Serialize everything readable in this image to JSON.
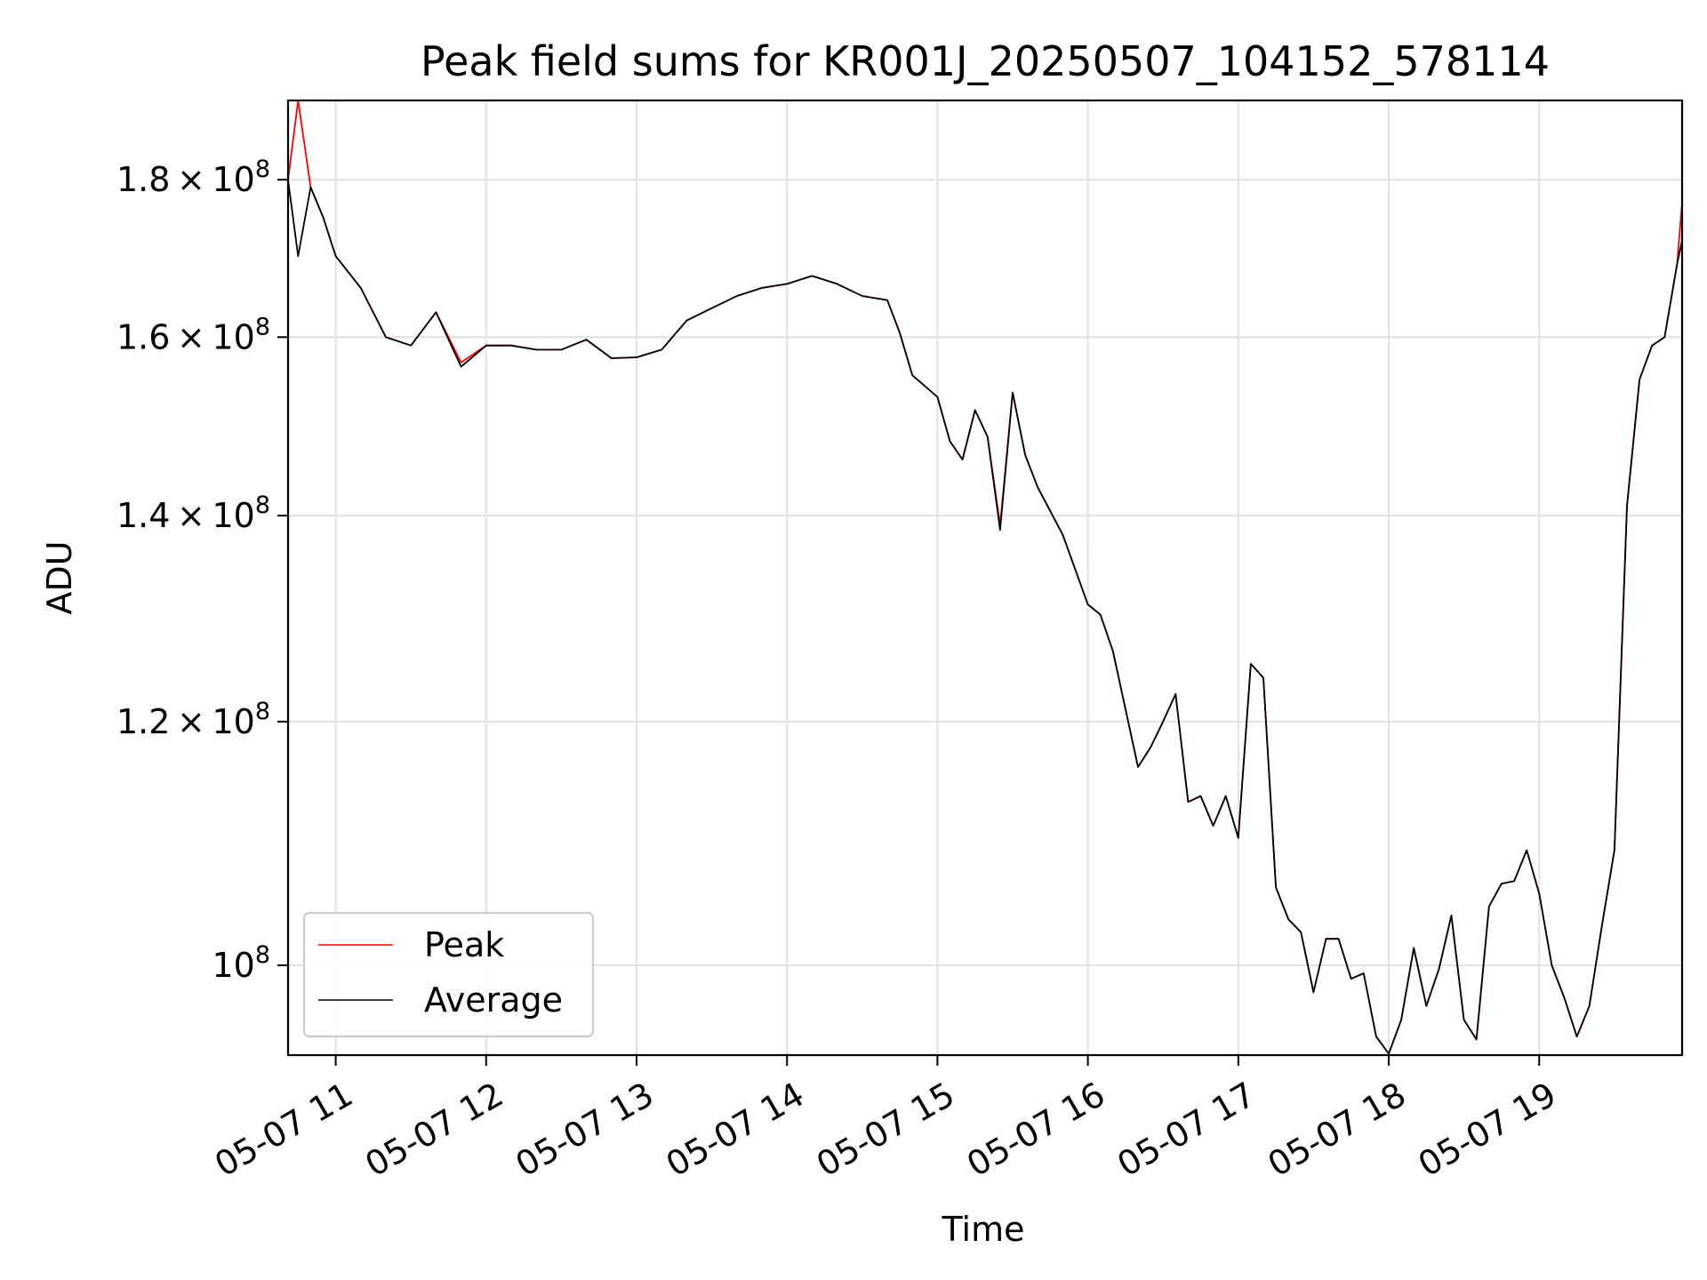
{
  "chart_data": {
    "type": "line",
    "title": "Peak field sums for KR001J_20250507_104152_578114",
    "xlabel": "Time",
    "ylabel": "ADU",
    "y_scale": "log",
    "xlim": [
      "2025-05-07 10:41",
      "2025-05-07 19:57"
    ],
    "ylim": [
      93500000,
      191000000
    ],
    "grid": true,
    "legend_position": "lower-left",
    "x_ticks": [
      "2025-05-07 11:00",
      "2025-05-07 12:00",
      "2025-05-07 13:00",
      "2025-05-07 14:00",
      "2025-05-07 15:00",
      "2025-05-07 16:00",
      "2025-05-07 17:00",
      "2025-05-07 18:00",
      "2025-05-07 19:00"
    ],
    "x_tick_labels": [
      "05-07 11",
      "05-07 12",
      "05-07 13",
      "05-07 14",
      "05-07 15",
      "05-07 16",
      "05-07 17",
      "05-07 18",
      "05-07 19"
    ],
    "y_ticks": [
      100000000,
      120000000,
      140000000,
      160000000,
      180000000
    ],
    "y_tick_labels": [
      {
        "mantissa": "",
        "exponent": "8"
      },
      {
        "mantissa": "1.2",
        "exponent": "8"
      },
      {
        "mantissa": "1.4",
        "exponent": "8"
      },
      {
        "mantissa": "1.6",
        "exponent": "8"
      },
      {
        "mantissa": "1.8",
        "exponent": "8"
      }
    ],
    "x": [
      "2025-05-07 10:41",
      "2025-05-07 10:45",
      "2025-05-07 10:50",
      "2025-05-07 10:55",
      "2025-05-07 11:00",
      "2025-05-07 11:10",
      "2025-05-07 11:20",
      "2025-05-07 11:30",
      "2025-05-07 11:40",
      "2025-05-07 11:50",
      "2025-05-07 12:00",
      "2025-05-07 12:10",
      "2025-05-07 12:20",
      "2025-05-07 12:30",
      "2025-05-07 12:40",
      "2025-05-07 12:50",
      "2025-05-07 13:00",
      "2025-05-07 13:10",
      "2025-05-07 13:20",
      "2025-05-07 13:30",
      "2025-05-07 13:40",
      "2025-05-07 13:50",
      "2025-05-07 14:00",
      "2025-05-07 14:10",
      "2025-05-07 14:20",
      "2025-05-07 14:30",
      "2025-05-07 14:40",
      "2025-05-07 14:45",
      "2025-05-07 14:50",
      "2025-05-07 15:00",
      "2025-05-07 15:05",
      "2025-05-07 15:10",
      "2025-05-07 15:15",
      "2025-05-07 15:20",
      "2025-05-07 15:25",
      "2025-05-07 15:30",
      "2025-05-07 15:35",
      "2025-05-07 15:40",
      "2025-05-07 15:50",
      "2025-05-07 16:00",
      "2025-05-07 16:05",
      "2025-05-07 16:10",
      "2025-05-07 16:20",
      "2025-05-07 16:25",
      "2025-05-07 16:30",
      "2025-05-07 16:35",
      "2025-05-07 16:40",
      "2025-05-07 16:45",
      "2025-05-07 16:50",
      "2025-05-07 16:55",
      "2025-05-07 17:00",
      "2025-05-07 17:05",
      "2025-05-07 17:10",
      "2025-05-07 17:15",
      "2025-05-07 17:20",
      "2025-05-07 17:25",
      "2025-05-07 17:30",
      "2025-05-07 17:35",
      "2025-05-07 17:40",
      "2025-05-07 17:45",
      "2025-05-07 17:50",
      "2025-05-07 17:55",
      "2025-05-07 18:00",
      "2025-05-07 18:05",
      "2025-05-07 18:10",
      "2025-05-07 18:15",
      "2025-05-07 18:20",
      "2025-05-07 18:25",
      "2025-05-07 18:30",
      "2025-05-07 18:35",
      "2025-05-07 18:40",
      "2025-05-07 18:45",
      "2025-05-07 18:50",
      "2025-05-07 18:55",
      "2025-05-07 19:00",
      "2025-05-07 19:05",
      "2025-05-07 19:10",
      "2025-05-07 19:15",
      "2025-05-07 19:20",
      "2025-05-07 19:25",
      "2025-05-07 19:30",
      "2025-05-07 19:35",
      "2025-05-07 19:40",
      "2025-05-07 19:45",
      "2025-05-07 19:50",
      "2025-05-07 19:55",
      "2025-05-07 19:57"
    ],
    "series": [
      {
        "name": "Peak",
        "color": "#ff0000",
        "values": [
          180000000,
          191000000,
          179000000,
          175000000,
          170000000,
          166000000,
          160000000,
          159000000,
          163000000,
          157000000,
          159000000,
          159000000,
          158500000,
          158500000,
          159700000,
          157500000,
          157600000,
          158500000,
          162000000,
          163500000,
          165000000,
          166000000,
          166500000,
          167500000,
          166500000,
          165000000,
          164500000,
          160500000,
          155500000,
          153000000,
          148000000,
          146000000,
          151500000,
          148500000,
          139000000,
          153500000,
          146500000,
          143000000,
          138000000,
          131000000,
          130000000,
          126500000,
          116000000,
          117700000,
          120000000,
          122500000,
          113000000,
          113500000,
          111000000,
          113500000,
          110000000,
          125300000,
          124000000,
          106000000,
          103500000,
          102500000,
          98000000,
          102000000,
          102000000,
          99000000,
          99400000,
          94800000,
          93600000,
          96000000,
          101300000,
          97000000,
          99700000,
          103800000,
          96000000,
          94600000,
          104500000,
          106300000,
          106500000,
          109000000,
          105500000,
          100000000,
          97600000,
          94800000,
          97000000,
          103000000,
          109000000,
          141000000,
          155000000,
          159000000,
          160000000,
          169000000,
          177000000
        ]
      },
      {
        "name": "Average",
        "color": "#000000",
        "values": [
          180000000,
          170000000,
          179000000,
          175000000,
          170000000,
          166000000,
          160000000,
          159000000,
          163000000,
          156500000,
          159000000,
          159000000,
          158500000,
          158500000,
          159700000,
          157500000,
          157600000,
          158500000,
          162000000,
          163500000,
          165000000,
          166000000,
          166500000,
          167500000,
          166500000,
          165000000,
          164500000,
          160500000,
          155500000,
          153000000,
          148000000,
          146000000,
          151500000,
          148500000,
          138500000,
          153500000,
          146500000,
          143000000,
          138000000,
          131000000,
          130000000,
          126500000,
          116000000,
          117700000,
          120000000,
          122500000,
          113000000,
          113500000,
          111000000,
          113500000,
          110000000,
          125300000,
          124000000,
          106000000,
          103500000,
          102500000,
          98000000,
          102000000,
          102000000,
          99000000,
          99400000,
          94800000,
          93600000,
          96000000,
          101300000,
          97000000,
          99700000,
          103800000,
          96000000,
          94600000,
          104500000,
          106300000,
          106500000,
          109000000,
          105500000,
          100000000,
          97600000,
          94800000,
          97000000,
          103000000,
          109000000,
          141000000,
          155000000,
          159000000,
          160000000,
          169000000,
          172000000
        ]
      }
    ]
  }
}
